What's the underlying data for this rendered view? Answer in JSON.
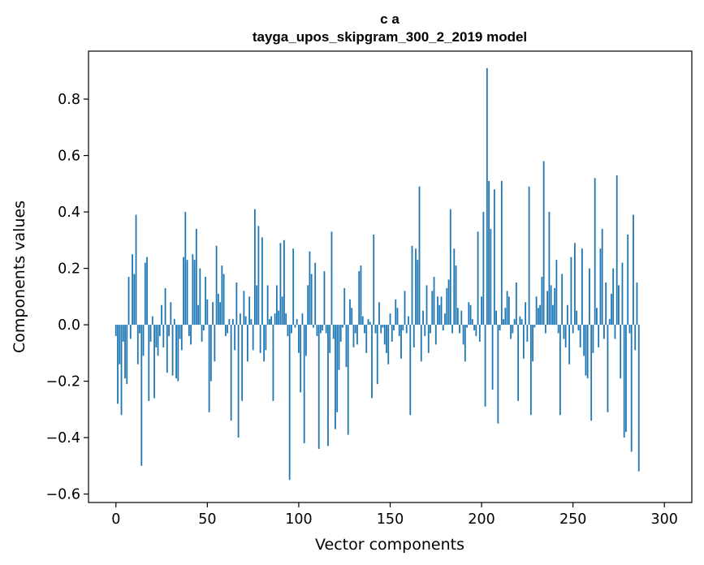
{
  "chart_data": {
    "type": "bar",
    "title_line1": "c a",
    "title_line2": "tayga_upos_skipgram_300_2_2019 model",
    "xlabel": "Vector components",
    "ylabel": "Components values",
    "xlim": [
      -15,
      315
    ],
    "ylim": [
      -0.63,
      0.97
    ],
    "xticks": [
      0,
      50,
      100,
      150,
      200,
      250,
      300
    ],
    "xtick_labels": [
      "0",
      "50",
      "100",
      "150",
      "200",
      "250",
      "300"
    ],
    "yticks": [
      -0.6,
      -0.4,
      -0.2,
      0.0,
      0.2,
      0.4,
      0.6,
      0.8
    ],
    "ytick_labels": [
      "−0.6",
      "−0.4",
      "−0.2",
      "0.0",
      "0.2",
      "0.4",
      "0.6",
      "0.8"
    ],
    "bar_color": "#1f77b4",
    "grid": false,
    "x_start": 0,
    "values": [
      -0.04,
      -0.28,
      -0.14,
      -0.32,
      -0.06,
      -0.19,
      -0.21,
      0.17,
      -0.05,
      0.25,
      0.18,
      0.39,
      -0.14,
      -0.03,
      -0.5,
      -0.11,
      0.22,
      0.24,
      -0.27,
      -0.06,
      0.03,
      -0.26,
      -0.08,
      -0.11,
      -0.04,
      0.07,
      -0.08,
      0.13,
      -0.17,
      -0.04,
      0.08,
      -0.18,
      0.02,
      -0.19,
      -0.2,
      -0.05,
      -0.09,
      0.24,
      0.4,
      0.23,
      -0.04,
      -0.07,
      0.25,
      0.23,
      0.34,
      0.07,
      0.2,
      -0.06,
      -0.02,
      0.17,
      0.09,
      -0.31,
      -0.2,
      0.08,
      -0.13,
      0.28,
      0.11,
      0.08,
      0.21,
      0.18,
      -0.04,
      -0.03,
      0.02,
      -0.34,
      0.02,
      -0.09,
      0.15,
      -0.4,
      0.04,
      -0.27,
      0.12,
      0.03,
      -0.13,
      0.1,
      0.02,
      -0.09,
      0.41,
      0.14,
      0.35,
      -0.1,
      0.31,
      -0.13,
      -0.09,
      0.14,
      0.02,
      0.03,
      -0.27,
      0.04,
      0.14,
      0.05,
      0.29,
      0.1,
      0.3,
      0.04,
      -0.04,
      -0.55,
      -0.03,
      0.27,
      -0.01,
      0.02,
      -0.1,
      -0.24,
      0.04,
      -0.42,
      -0.11,
      0.14,
      0.26,
      0.18,
      -0.01,
      0.22,
      -0.04,
      -0.44,
      -0.03,
      -0.02,
      0.19,
      -0.03,
      -0.43,
      -0.1,
      0.33,
      -0.05,
      -0.37,
      -0.31,
      -0.16,
      -0.06,
      -0.01,
      0.13,
      -0.15,
      -0.39,
      0.09,
      0.06,
      -0.08,
      -0.03,
      -0.07,
      0.19,
      0.21,
      0.03,
      -0.03,
      -0.1,
      0.02,
      0.01,
      -0.26,
      0.32,
      -0.03,
      -0.21,
      0.08,
      -0.03,
      -0.01,
      -0.07,
      -0.1,
      -0.14,
      0.04,
      -0.06,
      -0.02,
      0.09,
      0.06,
      -0.04,
      -0.12,
      -0.02,
      0.12,
      -0.03,
      0.03,
      -0.32,
      0.28,
      -0.08,
      0.27,
      0.23,
      0.49,
      -0.13,
      0.05,
      -0.04,
      0.14,
      -0.1,
      -0.03,
      0.12,
      0.17,
      -0.07,
      0.1,
      0.07,
      0.1,
      -0.02,
      0.04,
      0.13,
      0.16,
      0.41,
      -0.03,
      0.27,
      0.21,
      0.06,
      -0.03,
      0.05,
      -0.07,
      -0.13,
      -0.01,
      0.08,
      0.07,
      0.02,
      -0.02,
      -0.04,
      0.33,
      -0.06,
      0.1,
      0.4,
      -0.29,
      0.91,
      0.51,
      0.34,
      -0.23,
      0.48,
      0.05,
      -0.35,
      -0.02,
      0.51,
      0.02,
      0.06,
      0.12,
      0.1,
      -0.05,
      -0.03,
      0.02,
      0.15,
      -0.27,
      0.03,
      0.02,
      -0.12,
      0.08,
      -0.06,
      0.49,
      -0.32,
      -0.13,
      -0.01,
      0.1,
      0.06,
      0.07,
      0.17,
      0.58,
      -0.03,
      0.12,
      0.4,
      0.14,
      0.07,
      0.13,
      0.23,
      -0.03,
      -0.32,
      0.18,
      -0.05,
      -0.08,
      0.07,
      -0.14,
      0.24,
      -0.03,
      0.29,
      0.05,
      -0.02,
      -0.08,
      0.27,
      -0.11,
      -0.18,
      -0.19,
      0.2,
      -0.34,
      -0.1,
      0.52,
      0.06,
      -0.08,
      0.27,
      0.34,
      -0.05,
      0.15,
      -0.31,
      0.02,
      0.11,
      0.2,
      -0.05,
      0.53,
      0.14,
      -0.19,
      0.22,
      -0.4,
      -0.38,
      0.32,
      -0.03,
      -0.45,
      0.39,
      -0.09,
      0.15,
      -0.52
    ]
  }
}
